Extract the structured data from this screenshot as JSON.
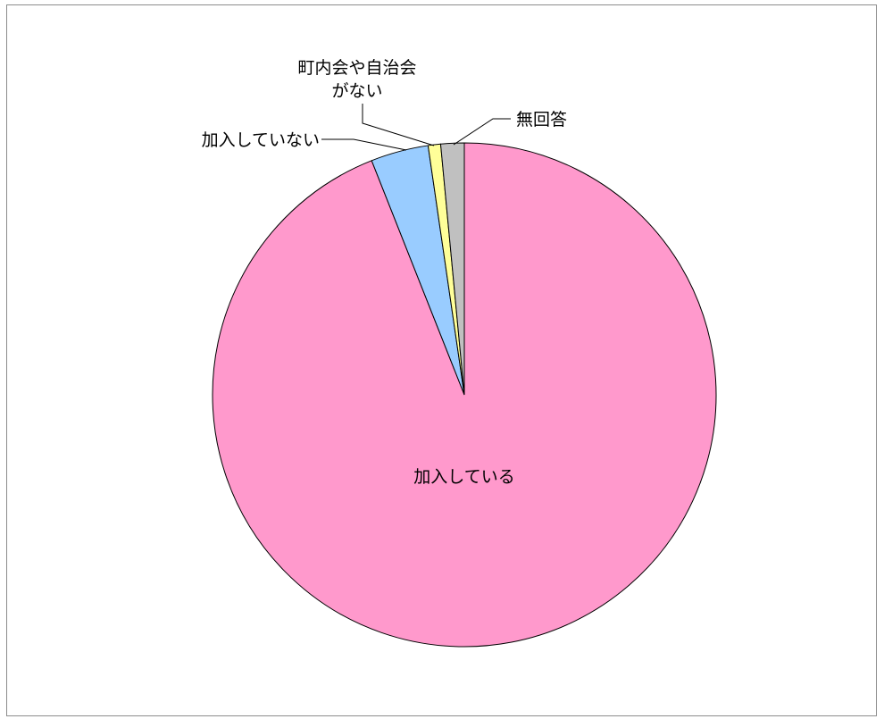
{
  "chart_data": {
    "type": "pie",
    "title": "",
    "start_angle_deg": 0,
    "direction": "clockwise",
    "slices": [
      {
        "label": "加入している",
        "label_lines": [
          "加入している"
        ],
        "value": 94.0,
        "color": "#ff99cc"
      },
      {
        "label": "加入していない",
        "label_lines": [
          "加入していない"
        ],
        "value": 3.7,
        "color": "#99ccff"
      },
      {
        "label": "町内会や自治会がない",
        "label_lines": [
          "町内会や自治会",
          "がない"
        ],
        "value": 0.8,
        "color": "#ffff99"
      },
      {
        "label": "無回答",
        "label_lines": [
          "無回答"
        ],
        "value": 1.5,
        "color": "#c0c0c0"
      }
    ],
    "legend": "none"
  }
}
